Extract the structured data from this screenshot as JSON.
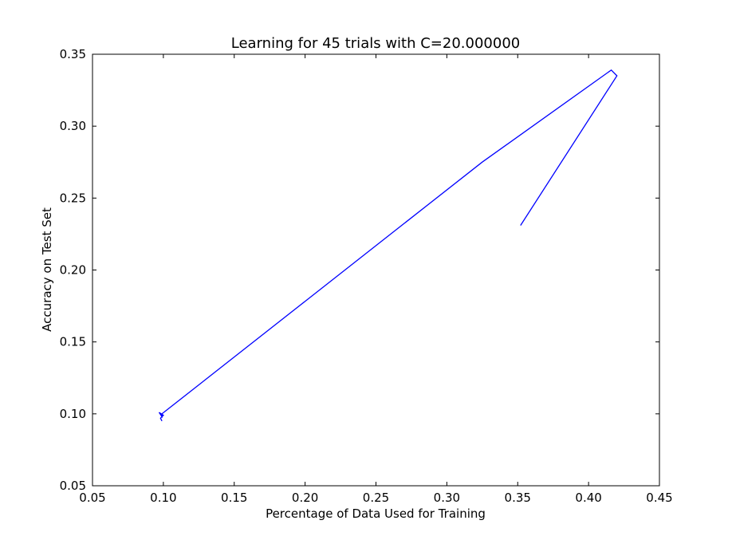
{
  "chart_data": {
    "type": "line",
    "title": "Learning for 45 trials with C=20.000000",
    "xlabel": "Percentage of Data Used for Training",
    "ylabel": "Accuracy on Test Set",
    "xlim": [
      0.05,
      0.45
    ],
    "ylim": [
      0.05,
      0.35
    ],
    "xticks": [
      "0.05",
      "0.10",
      "0.15",
      "0.20",
      "0.25",
      "0.30",
      "0.35",
      "0.40",
      "0.45"
    ],
    "yticks": [
      "0.05",
      "0.10",
      "0.15",
      "0.20",
      "0.25",
      "0.30",
      "0.35"
    ],
    "grid": false,
    "line_color": "#0000ff",
    "series": [
      {
        "x": [
          0.099,
          0.098,
          0.1,
          0.097,
          0.099,
          0.099,
          0.325,
          0.416,
          0.42,
          0.352
        ],
        "y": [
          0.095,
          0.097,
          0.099,
          0.101,
          0.098,
          0.1,
          0.275,
          0.339,
          0.335,
          0.231
        ]
      }
    ]
  }
}
